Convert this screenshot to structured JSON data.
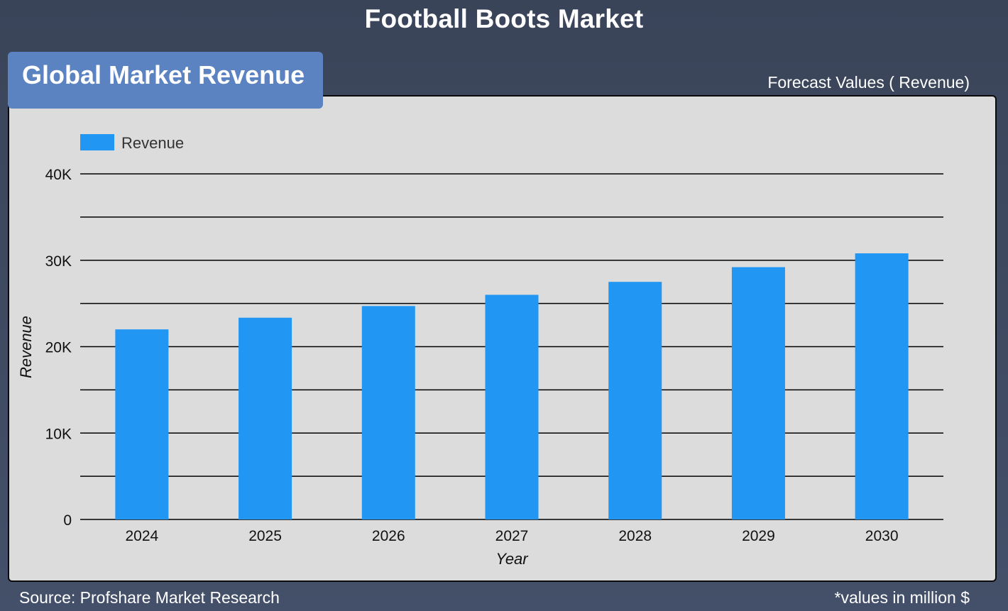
{
  "page": {
    "title": "Football Boots Market",
    "section_title": "Global Market Revenue",
    "forecast_label": "Forecast Values ( Revenue)",
    "source": "Source: Profshare Market Research",
    "units_note": "*values in million $"
  },
  "colors": {
    "background": "#3e4960",
    "section_tab": "#5b82c1",
    "panel": "#dcdcdc",
    "bar": "#2196f3",
    "gridline": "#000000"
  },
  "chart_data": {
    "type": "bar",
    "title": "",
    "xlabel": "Year",
    "ylabel": "Revenue",
    "categories": [
      "2024",
      "2025",
      "2026",
      "2027",
      "2028",
      "2029",
      "2030"
    ],
    "series": [
      {
        "name": "Revenue",
        "values": [
          22000,
          23350,
          24700,
          26000,
          27500,
          29200,
          30800
        ]
      }
    ],
    "ylim": [
      0,
      40000
    ],
    "yticks": [
      {
        "value": 0,
        "label": "0"
      },
      {
        "value": 10000,
        "label": "10K"
      },
      {
        "value": 20000,
        "label": "20K"
      },
      {
        "value": 30000,
        "label": "30K"
      },
      {
        "value": 40000,
        "label": "40K"
      }
    ],
    "minor_gridlines": [
      5000,
      15000,
      25000,
      35000
    ],
    "grid": true,
    "legend": "top-left"
  }
}
